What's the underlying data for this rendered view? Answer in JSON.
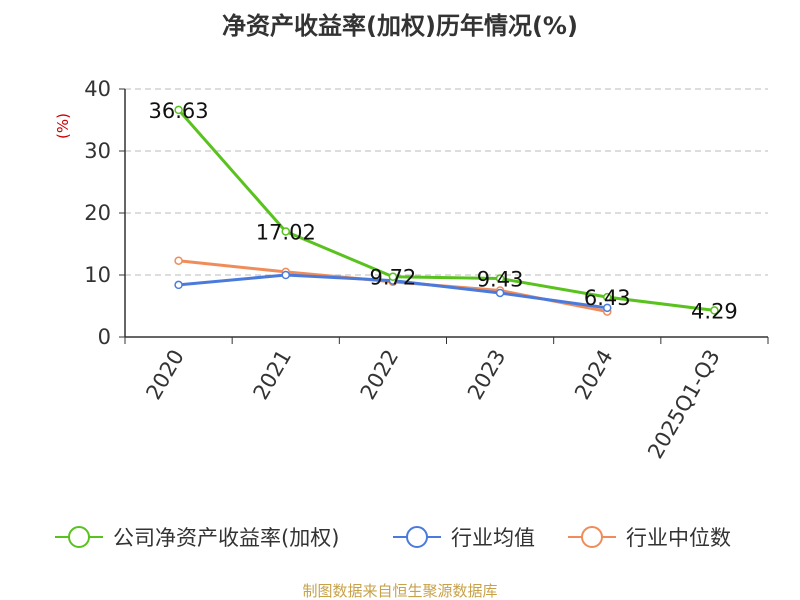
{
  "chart_data": {
    "type": "line",
    "title": "净资产收益率(加权)历年情况(%)",
    "ylabel": "(%)",
    "ylim": [
      0,
      40
    ],
    "yticks": [
      0,
      10,
      20,
      30,
      40
    ],
    "categories": [
      "2020",
      "2021",
      "2022",
      "2023",
      "2024",
      "2025Q1-Q3"
    ],
    "series": [
      {
        "name": "公司净资产收益率(加权)",
        "color": "#5ac21e",
        "values": [
          36.63,
          17.02,
          9.72,
          9.43,
          6.43,
          4.29
        ],
        "labels": [
          "36.63",
          "17.02",
          "9.72",
          "9.43",
          "6.43",
          "4.29"
        ]
      },
      {
        "name": "行业均值",
        "color": "#4a7bdc",
        "values": [
          8.4,
          10.0,
          9.1,
          7.1,
          4.7,
          null
        ]
      },
      {
        "name": "行业中位数",
        "color": "#f08c5a",
        "values": [
          12.3,
          10.5,
          8.9,
          7.5,
          4.1,
          null
        ]
      }
    ],
    "grid": "horizontal-dashed",
    "legend": "bottom",
    "source": "制图数据来自恒生聚源数据库"
  }
}
